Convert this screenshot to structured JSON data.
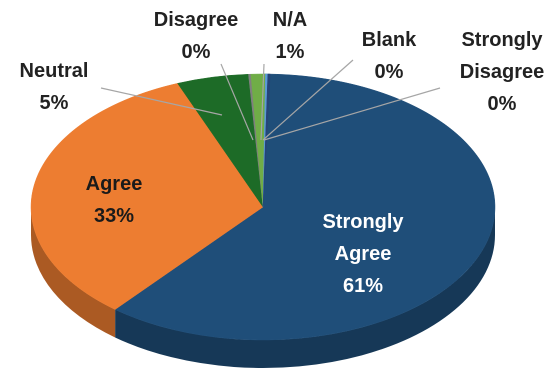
{
  "chart_data": {
    "type": "pie",
    "categories": [
      "Strongly Agree",
      "Agree",
      "Neutral",
      "Disagree",
      "N/A",
      "Blank",
      "Strongly Disagree"
    ],
    "values": [
      61,
      33,
      5,
      0,
      1,
      0,
      0
    ],
    "labels": [
      {
        "name": "Strongly Agree",
        "percent": "61%"
      },
      {
        "name": "Agree",
        "percent": "33%"
      },
      {
        "name": "Neutral",
        "percent": "5%"
      },
      {
        "name": "Disagree",
        "percent": "0%"
      },
      {
        "name": "N/A",
        "percent": "1%"
      },
      {
        "name": "Blank",
        "percent": "0%"
      },
      {
        "name": "Strongly Disagree",
        "percent": "0%"
      }
    ],
    "colors": {
      "Strongly Agree": "#1f4e79",
      "Agree": "#ed7d31",
      "Neutral": "#1d6b27",
      "Disagree": "#7f7f7f",
      "N/A": "#70ad47",
      "Blank": "#5b9bd5",
      "Strongly Disagree": "#264478"
    },
    "style": "3d-pie",
    "legend": "none",
    "title": ""
  }
}
